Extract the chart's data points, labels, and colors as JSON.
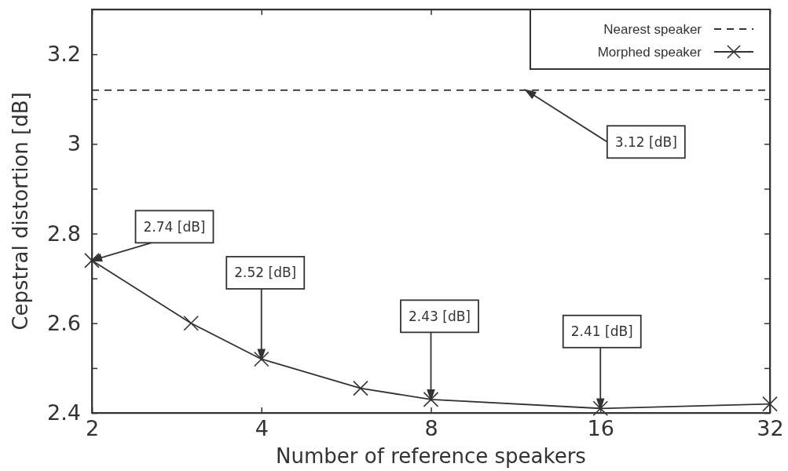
{
  "chart_data": {
    "type": "line",
    "xlabel": "Number of reference speakers",
    "ylabel": "Cepstral distortion [dB]",
    "log": "x",
    "xlim": [
      2,
      32
    ],
    "xticks": [
      2,
      4,
      8,
      16,
      32
    ],
    "ylim": [
      2.4,
      3.3
    ],
    "yticks": [
      2.4,
      {
        "value": 2.5,
        "label": null
      },
      2.6,
      {
        "value": 2.7,
        "label": null
      },
      2.8,
      {
        "value": 2.9,
        "label": null
      },
      3,
      {
        "value": 3.1,
        "label": null
      },
      3.2
    ],
    "grid": false,
    "legend": "top right",
    "series": [
      {
        "name": "Nearest speaker",
        "color": "#333333",
        "line_style": "dashed",
        "marker": "none",
        "x": [
          2,
          32
        ],
        "values": [
          3.12,
          3.12
        ]
      },
      {
        "name": "Morphed speaker",
        "color": "#333333",
        "line_style": "solid",
        "marker": "cross",
        "x": [
          2,
          3,
          4,
          6,
          8,
          16,
          32
        ],
        "values": [
          2.74,
          2.6,
          2.52,
          2.455,
          2.43,
          2.41,
          2.42
        ],
        "value_labels": [
          "2.74 [dB]",
          null,
          "2.52 [dB]",
          null,
          "2.43 [dB]",
          "2.41 [dB]",
          null
        ]
      }
    ],
    "annotations": [
      "3.12 [dB]"
    ]
  }
}
